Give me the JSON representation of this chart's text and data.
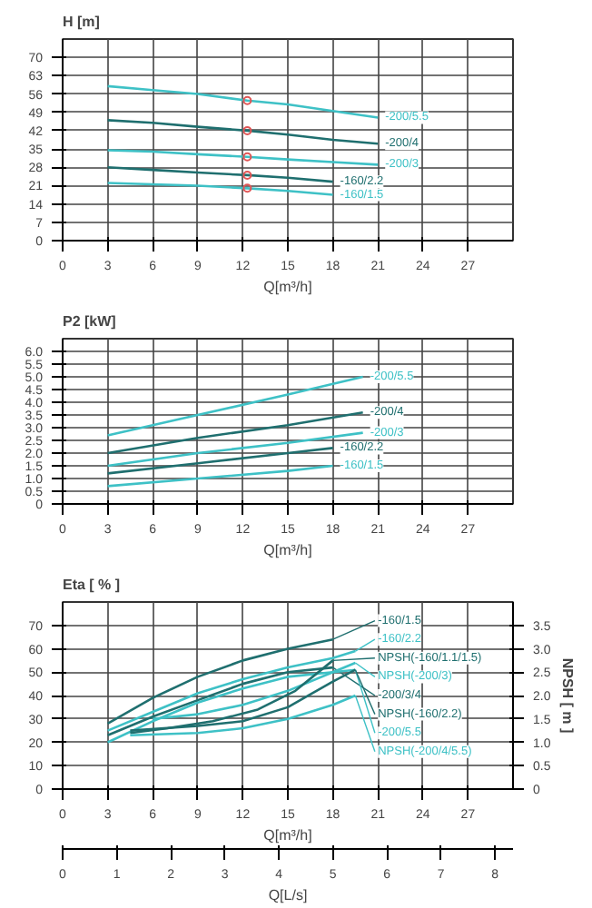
{
  "chart_data": [
    {
      "type": "line",
      "ylabel": "H [m]",
      "xlabel": "Q[m³/h]",
      "xlim": [
        0,
        30
      ],
      "xticks": [
        0,
        3,
        6,
        9,
        12,
        15,
        18,
        21,
        24,
        27
      ],
      "ylim": [
        0,
        77
      ],
      "yticks": [
        0,
        7,
        14,
        21,
        28,
        35,
        42,
        49,
        56,
        63,
        70
      ],
      "grid": true,
      "legend": false,
      "series": [
        {
          "name": "-200/5.5",
          "color": "#3ec1c6",
          "x": [
            3,
            6,
            9,
            12.3,
            15,
            18,
            21
          ],
          "values": [
            59,
            57.5,
            56,
            53.5,
            52,
            49.5,
            47
          ]
        },
        {
          "name": "-200/4",
          "color": "#1f6f6f",
          "x": [
            3,
            6,
            9,
            12.3,
            15,
            18,
            21
          ],
          "values": [
            46,
            45,
            43.5,
            42,
            40.5,
            38.5,
            37
          ]
        },
        {
          "name": "-200/3",
          "color": "#3ec1c6",
          "x": [
            3,
            6,
            9,
            12.3,
            15,
            18,
            21
          ],
          "values": [
            34.5,
            34,
            33,
            32,
            31,
            30,
            29
          ]
        },
        {
          "name": "-160/2.2",
          "color": "#1f6f6f",
          "x": [
            3,
            6,
            9,
            12.3,
            15,
            18
          ],
          "values": [
            28,
            27,
            26,
            25,
            24,
            22.5
          ]
        },
        {
          "name": "-160/1.5",
          "color": "#3ec1c6",
          "x": [
            3,
            6,
            9,
            12.3,
            15,
            18
          ],
          "values": [
            22,
            21.5,
            21,
            20,
            19,
            17.5
          ]
        },
        {
          "type": "scatter",
          "marker": "circle",
          "color": "#e05555",
          "x": [
            12.3,
            12.3,
            12.3,
            12.3,
            12.3
          ],
          "values": [
            53.5,
            42,
            32,
            25,
            20
          ]
        }
      ]
    },
    {
      "type": "line",
      "ylabel": "P2 [kW]",
      "xlabel": "Q[m³/h]",
      "xlim": [
        0,
        30
      ],
      "xticks": [
        0,
        3,
        6,
        9,
        12,
        15,
        18,
        21,
        24,
        27
      ],
      "ylim": [
        0,
        6.5
      ],
      "yticks": [
        0,
        {
          "value": 0.5,
          "label": "0.5"
        },
        {
          "value": 1,
          "label": "1.0"
        },
        {
          "value": 1.5,
          "label": "1.5"
        },
        {
          "value": 2,
          "label": "2.0"
        },
        {
          "value": 2.5,
          "label": "2.5"
        },
        {
          "value": 3,
          "label": "3.0"
        },
        {
          "value": 3.5,
          "label": "3.5"
        },
        {
          "value": 4,
          "label": "4.0"
        },
        {
          "value": 4.5,
          "label": "4.5"
        },
        {
          "value": 5,
          "label": "5.0"
        },
        {
          "value": 5.5,
          "label": "5.5"
        },
        {
          "value": 6,
          "label": "6.0"
        }
      ],
      "grid": true,
      "legend": false,
      "series": [
        {
          "name": "-200/5.5",
          "color": "#3ec1c6",
          "x": [
            3,
            9,
            15,
            20
          ],
          "values": [
            2.7,
            3.5,
            4.3,
            5.0
          ]
        },
        {
          "name": "-200/4",
          "color": "#1f6f6f",
          "x": [
            3,
            9,
            15,
            20
          ],
          "values": [
            2.0,
            2.6,
            3.1,
            3.6
          ]
        },
        {
          "name": "-200/3",
          "color": "#3ec1c6",
          "x": [
            3,
            9,
            15,
            20
          ],
          "values": [
            1.5,
            2.0,
            2.4,
            2.8
          ]
        },
        {
          "name": "-160/2.2",
          "color": "#1f6f6f",
          "x": [
            3,
            9,
            15,
            18
          ],
          "values": [
            1.2,
            1.6,
            2.0,
            2.2
          ]
        },
        {
          "name": "-160/1.5",
          "color": "#3ec1c6",
          "x": [
            3,
            9,
            15,
            18
          ],
          "values": [
            0.7,
            1.0,
            1.3,
            1.5
          ]
        }
      ]
    },
    {
      "type": "line",
      "ylabel": "Eta [ % ]",
      "y2label": "NPSH [ m ]",
      "xlabel": "Q[m³/h]",
      "x2label": "Q[L/s]",
      "xlim": [
        0,
        30
      ],
      "xticks": [
        0,
        3,
        6,
        9,
        12,
        15,
        18,
        21,
        24,
        27
      ],
      "x2lim": [
        0,
        8.333
      ],
      "x2ticks": [
        0,
        1,
        2,
        3,
        4,
        5,
        6,
        7,
        8
      ],
      "ylim": [
        0,
        80
      ],
      "yticks": [
        0,
        10,
        20,
        30,
        40,
        50,
        60,
        70
      ],
      "y2lim": [
        0,
        4
      ],
      "y2ticks": [
        0,
        0.5,
        {
          "value": 1,
          "label": "1.0"
        },
        1.5,
        {
          "value": 2,
          "label": "2.0"
        },
        2.5,
        {
          "value": 3,
          "label": "3.0"
        },
        3.5
      ],
      "grid": true,
      "legend": false,
      "series": [
        {
          "name": "-160/1.5",
          "color": "#1f6f6f",
          "x": [
            3,
            6,
            9,
            12,
            15,
            18
          ],
          "values": [
            28,
            39,
            48,
            55,
            60,
            64
          ]
        },
        {
          "name": "-160/2.2",
          "color": "#3ec1c6",
          "x": [
            3,
            6,
            9,
            12,
            15,
            18,
            19.5
          ],
          "values": [
            25,
            33,
            41,
            47,
            52,
            56,
            59
          ]
        },
        {
          "name": "-200/3/4",
          "color": "#1f6f6f",
          "x": [
            3,
            6,
            9,
            12,
            15,
            18
          ],
          "values": [
            23,
            31,
            38,
            45,
            50,
            52
          ]
        },
        {
          "name": "-200/5.5",
          "color": "#3ec1c6",
          "x": [
            3,
            6,
            9,
            12,
            15,
            18,
            19.5
          ],
          "values": [
            20,
            29,
            37,
            43,
            48,
            50,
            51
          ]
        },
        {
          "name": "NPSH(-200/3)",
          "axis": "y2",
          "color": "#3ec1c6",
          "x": [
            6,
            9,
            12,
            15,
            18,
            19.5
          ],
          "values": [
            1.5,
            1.6,
            1.8,
            2.1,
            2.5,
            2.7
          ]
        },
        {
          "name": "NPSH(-160/1.1/1.5)",
          "axis": "y2",
          "color": "#1f6f6f",
          "x": [
            4.5,
            7,
            10,
            13,
            15.5,
            18
          ],
          "values": [
            1.2,
            1.3,
            1.45,
            1.7,
            2.1,
            2.75
          ]
        },
        {
          "name": "NPSH(-160/2.2)",
          "axis": "y2",
          "color": "#1f6f6f",
          "x": [
            4.5,
            9,
            12,
            15,
            18,
            19.5
          ],
          "values": [
            1.25,
            1.35,
            1.45,
            1.75,
            2.3,
            2.55
          ]
        },
        {
          "name": "NPSH(-200/4/5.5)",
          "axis": "y2",
          "color": "#3ec1c6",
          "x": [
            4.5,
            9,
            12,
            15,
            18,
            19.5
          ],
          "values": [
            1.15,
            1.2,
            1.3,
            1.5,
            1.8,
            2.0
          ]
        }
      ]
    }
  ]
}
